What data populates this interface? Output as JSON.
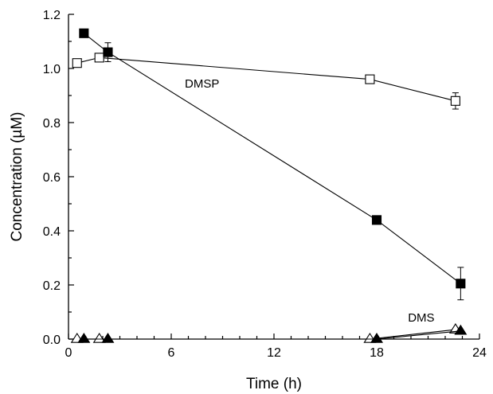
{
  "chart_data": {
    "type": "line",
    "xlabel": "Time (h)",
    "ylabel": "Concentration (µM)",
    "xlim": [
      0,
      24
    ],
    "ylim": [
      0,
      1.2
    ],
    "xticks": [
      0,
      6,
      12,
      18,
      24
    ],
    "yticks": [
      0.0,
      0.2,
      0.4,
      0.6,
      0.8,
      1.0,
      1.2
    ],
    "ytick_labels": [
      "0.0",
      "0.2",
      "0.4",
      "0.6",
      "0.8",
      "1.0",
      "1.2"
    ],
    "grid": false,
    "annotations": [
      {
        "text": "DMSP",
        "x": 7.8,
        "y": 0.93
      },
      {
        "text": "DMS",
        "x": 20.6,
        "y": 0.065
      }
    ],
    "series": [
      {
        "marker": "square-open",
        "x": [
          0.5,
          1.8,
          17.6,
          22.6
        ],
        "y": [
          1.02,
          1.04,
          0.96,
          0.88
        ],
        "err": [
          0.01,
          0.01,
          0.01,
          0.03
        ]
      },
      {
        "marker": "square-filled",
        "x": [
          0.9,
          2.3,
          18.0,
          22.9
        ],
        "y": [
          1.13,
          1.06,
          0.44,
          0.205
        ],
        "err": [
          0.01,
          0.035,
          0.01,
          0.06
        ]
      },
      {
        "marker": "triangle-open",
        "x": [
          0.5,
          1.8,
          17.6,
          22.6
        ],
        "y": [
          0.0,
          0.0,
          0.0,
          0.035
        ],
        "err": [
          0,
          0,
          0,
          0
        ]
      },
      {
        "marker": "triangle-filled",
        "x": [
          0.9,
          2.3,
          18.0,
          22.9
        ],
        "y": [
          0.0,
          0.0,
          0.0,
          0.03
        ],
        "err": [
          0,
          0,
          0,
          0
        ]
      }
    ]
  }
}
